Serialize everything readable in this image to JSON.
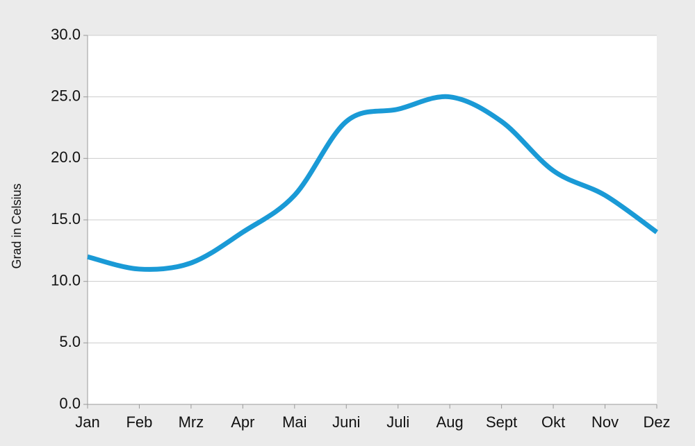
{
  "chart_data": {
    "type": "line",
    "y_label": "Grad in Celsius",
    "categories": [
      "Jan",
      "Feb",
      "Mrz",
      "Apr",
      "Mai",
      "Juni",
      "Juli",
      "Aug",
      "Sept",
      "Okt",
      "Nov",
      "Dez"
    ],
    "values": [
      12,
      11,
      11.5,
      14,
      17,
      23,
      24,
      25,
      23,
      19,
      17,
      14
    ],
    "color": "#1a9ad6",
    "smooth": true,
    "ylim": [
      0,
      30
    ],
    "yticks": [
      {
        "value": 0,
        "label": "0.0"
      },
      {
        "value": 5,
        "label": "5.0"
      },
      {
        "value": 10,
        "label": "10.0"
      },
      {
        "value": 15,
        "label": "15.0"
      },
      {
        "value": 20,
        "label": "20.0"
      },
      {
        "value": 25,
        "label": "25.0"
      },
      {
        "value": 30,
        "label": "30.0"
      }
    ],
    "grid": true
  }
}
